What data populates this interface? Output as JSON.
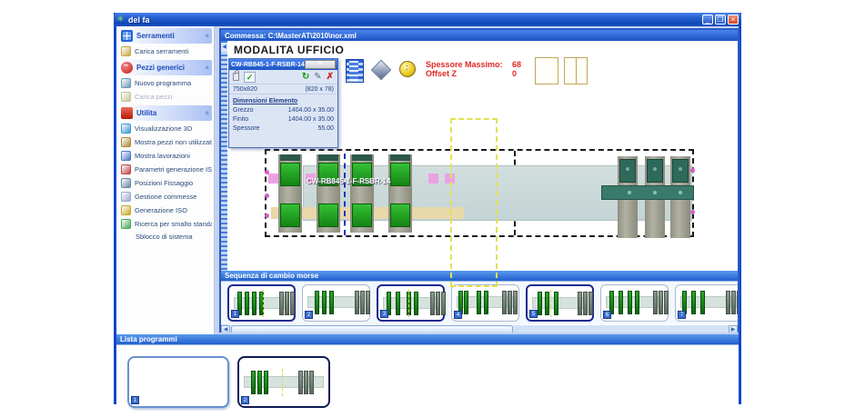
{
  "window": {
    "title": "del fa",
    "app_icon": "✳",
    "buttons": {
      "minimize": "_",
      "restore": "❐",
      "close": "×"
    }
  },
  "sidebar": {
    "groups": [
      {
        "label": "Serramenti",
        "icon": "window-frames-icon",
        "icon_class": "icon-window",
        "items": [
          {
            "label": "Carica serramenti",
            "icon": "load-frames-icon",
            "color": "#c8a848"
          }
        ]
      },
      {
        "label": "Pezzi generici",
        "icon": "generic-pieces-icon",
        "icon_class": "icon-redball",
        "items": [
          {
            "label": "Nuovo programma",
            "icon": "new-program-icon",
            "color": "#6a9ab8"
          },
          {
            "label": "Carica pezzi",
            "icon": "load-pieces-icon",
            "color": "#c8c09a",
            "disabled": true
          }
        ]
      },
      {
        "label": "Utilita",
        "icon": "utilities-icon",
        "icon_class": "icon-arrow-red",
        "items": [
          {
            "label": "Visualizzazione 3D",
            "icon": "view-3d-icon",
            "color": "#3a9ad0"
          },
          {
            "label": "Mostra pezzi non utilizzati",
            "icon": "unused-pieces-icon",
            "color": "#b08838"
          },
          {
            "label": "Mostra lavorazioni",
            "icon": "machinings-icon",
            "color": "#4a78c8"
          },
          {
            "label": "Parametri generazione ISO",
            "icon": "iso-parameters-icon",
            "color": "#c04848"
          },
          {
            "label": "Posizioni Fissaggio",
            "icon": "fixture-positions-icon",
            "color": "#6888a8"
          },
          {
            "label": "Gestione commesse",
            "icon": "orders-icon",
            "color": "#9aa8d0"
          },
          {
            "label": "Generazione ISO",
            "icon": "iso-generation-icon",
            "color": "#c8a828"
          },
          {
            "label": "Ricerca per smalto standard",
            "icon": "search-icon",
            "color": "#48a858"
          },
          {
            "label": "Sblocco di sistema",
            "icon": null,
            "color": null
          }
        ]
      }
    ]
  },
  "document": {
    "title": "Commessa:  C:\\MasterAT\\2010\\nor.xml",
    "mode_heading": "MODALITA UFFICIO"
  },
  "toolbar": {
    "spessore_label": "Spessore Massimo:",
    "spessore_value": "68",
    "offset_label": "Offset Z",
    "offset_value": "0"
  },
  "dialog": {
    "title": "CW-RB845-1-F-RSBR-14",
    "close": "×",
    "check": "✓",
    "refresh": "↻",
    "tool": "✎",
    "delete": "✗",
    "size_left": "750x820",
    "size_right": "(820 x 78)",
    "section_title": "Dimensioni Elemento",
    "rows": [
      {
        "label": "Grezzo",
        "value": "1404.00 x 35.00"
      },
      {
        "label": "Finito",
        "value": "1404.00 x 35.00"
      },
      {
        "label": "Spessore",
        "value": "55.00"
      }
    ]
  },
  "drawing": {
    "part_label": "CW-RB845-1-F-RSBR-14"
  },
  "sequence": {
    "header": "Sequenza di cambio morse",
    "scroll_left": "◀",
    "scroll_right": "▶",
    "thumbnails": [
      {
        "badge": "1",
        "selected": true,
        "clusters": [
          6,
          14,
          22,
          30
        ],
        "right_cluster": 52,
        "dash": 34
      },
      {
        "badge": "2",
        "selected": false,
        "clusters": [
          10,
          18,
          26
        ],
        "right_cluster": 54,
        "dash": null
      },
      {
        "badge": "3",
        "selected": true,
        "clusters": [
          6,
          16,
          28,
          36
        ],
        "right_cluster": 54,
        "dash": 30
      },
      {
        "badge": "4",
        "selected": false,
        "clusters": [
          4,
          10,
          24,
          32
        ],
        "right_cluster": 52,
        "dash": null
      },
      {
        "badge": "5",
        "selected": true,
        "clusters": [
          8,
          16,
          26
        ],
        "right_cluster": 52,
        "dash": 22
      },
      {
        "badge": "6",
        "selected": false,
        "clusters": [
          6,
          16,
          26,
          34
        ],
        "right_cluster": 54,
        "dash": null
      },
      {
        "badge": "7",
        "selected": false,
        "clusters": [
          4,
          14,
          24
        ],
        "right_cluster": 52,
        "dash": null
      }
    ]
  },
  "programs": {
    "header": "Lista programmi",
    "cards": [
      {
        "badge": "1",
        "selected": true,
        "empty": true,
        "clusters": [],
        "right_cluster": null,
        "dash": null
      },
      {
        "badge": "2",
        "selected": false,
        "empty": false,
        "clusters": [
          10,
          17,
          24
        ],
        "right_cluster": 62,
        "dash": 44
      }
    ]
  }
}
